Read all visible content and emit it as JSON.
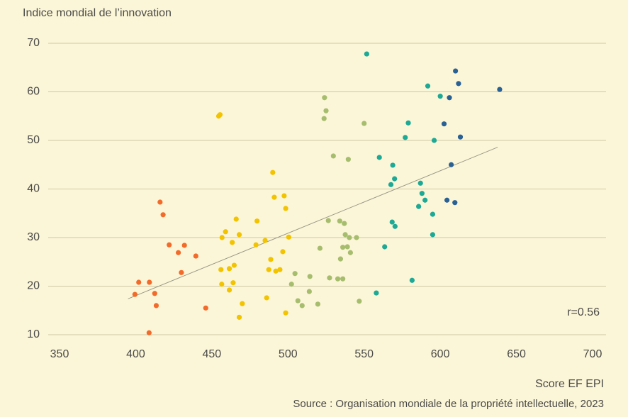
{
  "chart_data": {
    "type": "scatter",
    "title": "Indice mondial de l’innovation",
    "x_label": "Score EF EPI",
    "source": "Source : Organisation mondiale de la propriété intellectuelle, 2023",
    "annotation": "r=0.56",
    "xlim": [
      350,
      700
    ],
    "xticks": [
      350,
      400,
      450,
      500,
      550,
      600,
      650,
      700
    ],
    "ylim": [
      10,
      70
    ],
    "yticks": [
      10,
      20,
      30,
      40,
      50,
      60,
      70
    ],
    "grid": true,
    "series": [
      {
        "color": "#f26b2a",
        "x": [
          408.8,
          399.5,
          402,
          409,
          412.5,
          413.5,
          416,
          418,
          422,
          428,
          430,
          432,
          439.5,
          446
        ],
        "values": [
          10.4,
          18.3,
          20.8,
          20.8,
          18.5,
          16.0,
          37.3,
          34.7,
          28.5,
          26.9,
          22.8,
          28.4,
          26.2,
          15.5
        ]
      },
      {
        "color": "#f2c300",
        "x": [
          454.5,
          455.4,
          490,
          497.5,
          491,
          498.5,
          466,
          479.7,
          459,
          456.7,
          468,
          500.5,
          463.4,
          485,
          479,
          496.6,
          488.7,
          464.7,
          456,
          461.5,
          487.4,
          492,
          494.7,
          464,
          456.5,
          461.5,
          486,
          470,
          498.5,
          468
        ],
        "values": [
          55.0,
          55.3,
          43.4,
          38.6,
          38.3,
          36.0,
          33.8,
          33.4,
          31.2,
          30.0,
          30.6,
          30.1,
          29.0,
          29.4,
          28.5,
          27.1,
          25.5,
          24.3,
          23.4,
          23.6,
          23.4,
          23.1,
          23.4,
          20.7,
          20.4,
          19.2,
          17.6,
          16.4,
          14.5,
          13.6
        ]
      },
      {
        "color": "#a6bd6e",
        "x": [
          524,
          525,
          523.7,
          550,
          529.8,
          539.6,
          526.5,
          534,
          537,
          537.6,
          540.3,
          545,
          521,
          536,
          539,
          541,
          534.5,
          504.6,
          514.4,
          532.7,
          536,
          527.3,
          502.3,
          514,
          506.5,
          509.3,
          519.6,
          546.8
        ],
        "values": [
          58.8,
          56.1,
          54.5,
          53.5,
          46.8,
          46.1,
          33.5,
          33.4,
          32.9,
          30.6,
          30.0,
          30.0,
          27.8,
          28.0,
          28.1,
          26.9,
          25.6,
          22.6,
          22.0,
          21.5,
          21.5,
          21.7,
          20.4,
          18.9,
          17.0,
          16.0,
          16.3,
          16.9
        ]
      },
      {
        "color": "#1ca995",
        "x": [
          551.7,
          591.8,
          600,
          579,
          577,
          596,
          560,
          568.8,
          570,
          567.6,
          587,
          588,
          590,
          585.8,
          595,
          568.4,
          570.3,
          595,
          563.5,
          581.5,
          558
        ],
        "values": [
          67.8,
          61.2,
          59.1,
          53.6,
          50.6,
          50.0,
          46.5,
          44.9,
          42.1,
          40.9,
          41.2,
          39.1,
          37.7,
          36.4,
          34.8,
          33.2,
          32.3,
          30.6,
          28.1,
          21.2,
          18.6
        ]
      },
      {
        "color": "#2a6194",
        "x": [
          610,
          612,
          606,
          639,
          602.5,
          613.2,
          607.2,
          604.4,
          609.6
        ],
        "values": [
          64.3,
          61.7,
          58.8,
          60.5,
          53.4,
          50.7,
          45.0,
          37.7,
          37.2
        ]
      }
    ],
    "trendline": {
      "color": "#9a9a8a",
      "x": [
        395,
        637.7
      ],
      "values": [
        17.4,
        48.6
      ]
    }
  }
}
